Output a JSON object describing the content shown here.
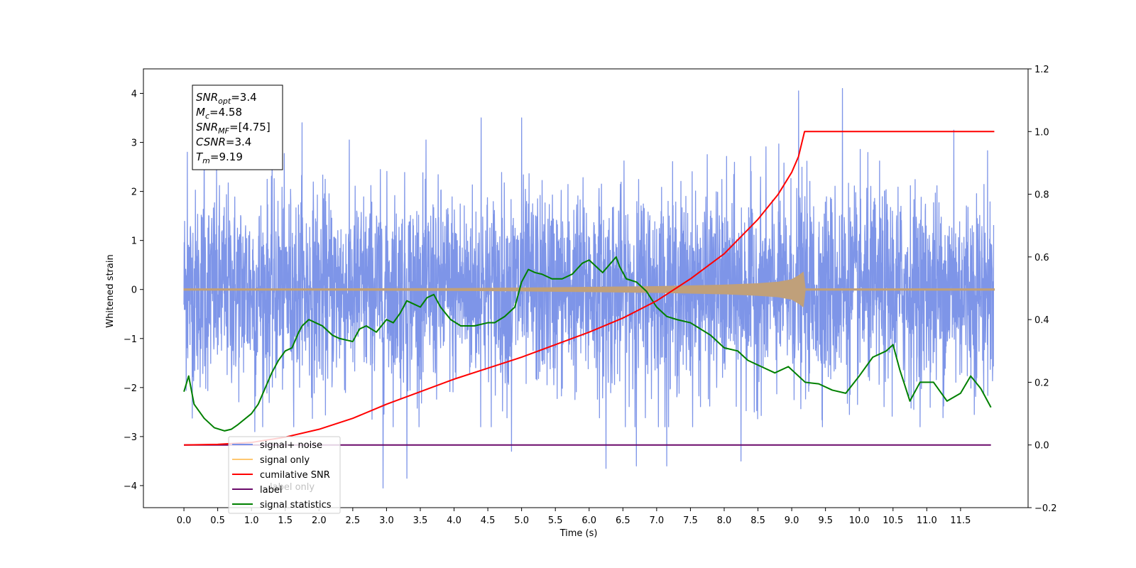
{
  "chart_data": {
    "type": "line",
    "xlabel": "Time (s)",
    "ylabel": "Whitened strain",
    "xlim": [
      -0.6,
      12.5
    ],
    "ylim": [
      -4.45,
      4.5
    ],
    "y2lim": [
      -0.2,
      1.2
    ],
    "x_ticks": [
      "0.0",
      "0.5",
      "1.0",
      "1.5",
      "2.0",
      "2.5",
      "3.0",
      "3.5",
      "4.0",
      "4.5",
      "5.0",
      "5.5",
      "6.0",
      "6.5",
      "7.0",
      "7.5",
      "8.0",
      "8.5",
      "9.0",
      "9.5",
      "10.0",
      "10.5",
      "11.0",
      "11.5"
    ],
    "y_ticks": [
      "4",
      "3",
      "2",
      "1",
      "0",
      "−1",
      "−2",
      "−3",
      "−4"
    ],
    "y2_ticks": [
      "1.2",
      "1.0",
      "0.8",
      "0.6",
      "0.4",
      "0.2",
      "0.0",
      "−0.2"
    ],
    "info_box": [
      "SNR_opt=3.4",
      "M_c=4.58",
      "SNR_MF=[4.75]",
      "CSNR=3.4",
      "T_m=9.19"
    ],
    "info_box_parts": [
      {
        "base": "SNR",
        "sub": "opt",
        "value": "=3.4"
      },
      {
        "base": "M",
        "sub": "c",
        "value": "=4.58"
      },
      {
        "base": "SNR",
        "sub": "MF",
        "value": "=[4.75]"
      },
      {
        "base": "CSNR",
        "sub": "",
        "value": "=3.4"
      },
      {
        "base": "T",
        "sub": "m",
        "value": "=9.19"
      }
    ],
    "legend": {
      "placement": "lower-left",
      "entries": [
        {
          "label": "signal+ noise",
          "color": "#7b93e8"
        },
        {
          "label": "signal only",
          "color": "#ffc870"
        },
        {
          "label": "cumilative SNR",
          "color": "#ff0000"
        },
        {
          "label": "label",
          "color": "#6a0a6a"
        },
        {
          "label": "signal statistics",
          "color": "#008000"
        }
      ],
      "hidden_text": "label only"
    },
    "series": [
      {
        "name": "signal+ noise",
        "axis": "left",
        "color": "#7b93e8",
        "description_range": [
          0.0,
          11.99
        ],
        "amplitude_sigma": 1.0,
        "x_spikes": [
          0.05,
          0.3,
          1.05,
          1.75,
          2.95,
          3.3,
          4.4,
          4.85,
          5.0,
          6.25,
          6.7,
          7.15,
          8.25,
          9.1,
          9.75,
          11.4
        ],
        "y_spikes": [
          2.8,
          3.3,
          -2.9,
          3.4,
          -4.05,
          -3.85,
          3.5,
          -3.3,
          3.5,
          -3.65,
          -3.6,
          -3.6,
          -3.5,
          4.05,
          4.1,
          3.25
        ]
      },
      {
        "name": "signal only",
        "axis": "left",
        "color": "#c0a07a",
        "x": [
          0.0,
          2.0,
          4.0,
          5.0,
          6.0,
          7.0,
          8.0,
          8.5,
          8.8,
          9.0,
          9.1,
          9.17,
          9.2,
          12.0
        ],
        "y": [
          0.01,
          0.01,
          0.02,
          0.03,
          0.045,
          0.06,
          0.09,
          0.12,
          0.15,
          0.2,
          0.28,
          0.35,
          0.0,
          0.0
        ]
      },
      {
        "name": "cumilative SNR",
        "axis": "right",
        "color": "#ff0000",
        "x": [
          0.0,
          0.5,
          1.0,
          1.5,
          2.0,
          2.5,
          3.0,
          3.5,
          4.0,
          4.5,
          5.0,
          5.5,
          6.0,
          6.5,
          7.0,
          7.5,
          8.0,
          8.5,
          8.8,
          9.0,
          9.1,
          9.19,
          12.0
        ],
        "y": [
          0.0,
          0.002,
          0.008,
          0.025,
          0.05,
          0.085,
          0.13,
          0.17,
          0.21,
          0.245,
          0.28,
          0.32,
          0.36,
          0.405,
          0.46,
          0.53,
          0.61,
          0.72,
          0.8,
          0.87,
          0.92,
          1.0,
          1.0
        ]
      },
      {
        "name": "label",
        "axis": "right",
        "color": "#6a0a6a",
        "x": [
          0.0,
          11.95
        ],
        "y": [
          0.0,
          0.0
        ]
      },
      {
        "name": "signal statistics",
        "axis": "right",
        "color": "#008000",
        "x": [
          0.0,
          0.07,
          0.15,
          0.3,
          0.45,
          0.6,
          0.7,
          0.8,
          1.0,
          1.1,
          1.2,
          1.3,
          1.4,
          1.5,
          1.6,
          1.7,
          1.75,
          1.85,
          1.95,
          2.05,
          2.2,
          2.3,
          2.5,
          2.6,
          2.7,
          2.85,
          3.0,
          3.1,
          3.2,
          3.3,
          3.4,
          3.5,
          3.6,
          3.7,
          3.8,
          3.95,
          4.1,
          4.3,
          4.5,
          4.6,
          4.75,
          4.9,
          5.0,
          5.1,
          5.2,
          5.3,
          5.45,
          5.6,
          5.75,
          5.9,
          6.0,
          6.2,
          6.4,
          6.45,
          6.55,
          6.7,
          6.85,
          7.0,
          7.15,
          7.3,
          7.5,
          7.65,
          7.8,
          8.0,
          8.2,
          8.35,
          8.55,
          8.75,
          8.95,
          9.2,
          9.4,
          9.6,
          9.8,
          10.0,
          10.2,
          10.4,
          10.5,
          10.6,
          10.75,
          10.9,
          11.1,
          11.3,
          11.5,
          11.65,
          11.8,
          11.95
        ],
        "y": [
          0.17,
          0.22,
          0.13,
          0.085,
          0.055,
          0.045,
          0.05,
          0.065,
          0.1,
          0.13,
          0.18,
          0.23,
          0.27,
          0.3,
          0.31,
          0.36,
          0.38,
          0.4,
          0.39,
          0.38,
          0.35,
          0.34,
          0.33,
          0.37,
          0.38,
          0.36,
          0.4,
          0.39,
          0.42,
          0.46,
          0.45,
          0.44,
          0.47,
          0.48,
          0.44,
          0.4,
          0.38,
          0.38,
          0.39,
          0.39,
          0.41,
          0.44,
          0.52,
          0.56,
          0.55,
          0.545,
          0.53,
          0.53,
          0.545,
          0.58,
          0.59,
          0.55,
          0.6,
          0.57,
          0.53,
          0.52,
          0.49,
          0.44,
          0.41,
          0.4,
          0.39,
          0.37,
          0.35,
          0.31,
          0.3,
          0.27,
          0.25,
          0.23,
          0.25,
          0.2,
          0.195,
          0.175,
          0.165,
          0.22,
          0.28,
          0.3,
          0.32,
          0.24,
          0.14,
          0.2,
          0.2,
          0.14,
          0.165,
          0.22,
          0.18,
          0.12
        ]
      }
    ]
  }
}
